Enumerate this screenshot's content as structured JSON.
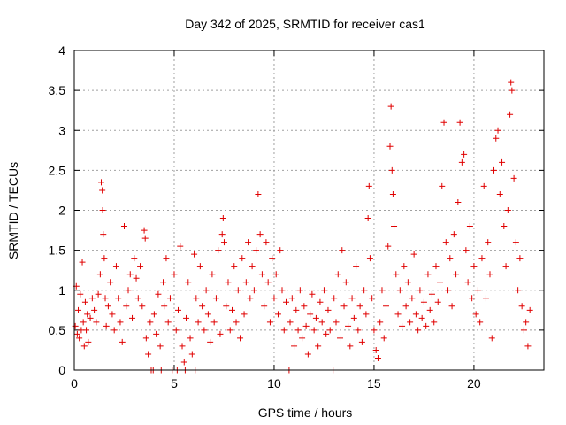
{
  "chart_data": {
    "type": "scatter",
    "title": "Day 342 of 2025, SRMTID for receiver cas1",
    "xlabel": "GPS time / hours",
    "ylabel": "SRMTID / TECUs",
    "xlim": [
      0,
      23.5
    ],
    "ylim": [
      0,
      4
    ],
    "x_ticks": [
      0,
      5,
      10,
      15,
      20
    ],
    "x_tick_labels": [
      "0",
      "5",
      "10",
      "15",
      "20"
    ],
    "y_ticks": [
      0,
      0.5,
      1,
      1.5,
      2,
      2.5,
      3,
      3.5,
      4
    ],
    "y_tick_labels": [
      "0",
      "0.5",
      "1",
      "1.5",
      "2",
      "2.5",
      "3",
      "3.5",
      "4"
    ],
    "grid": true,
    "marker": "plus",
    "series_color": "#e00000",
    "series": [
      {
        "name": "SRMTID",
        "points": [
          [
            0.05,
            0.55
          ],
          [
            0.1,
            1.05
          ],
          [
            0.15,
            0.45
          ],
          [
            0.2,
            0.75
          ],
          [
            0.25,
            0.4
          ],
          [
            0.3,
            0.95
          ],
          [
            0.35,
            0.5
          ],
          [
            0.4,
            1.35
          ],
          [
            0.45,
            0.6
          ],
          [
            0.5,
            0.3
          ],
          [
            0.55,
            0.85
          ],
          [
            0.6,
            0.5
          ],
          [
            0.65,
            0.7
          ],
          [
            0.7,
            0.35
          ],
          [
            0.8,
            0.65
          ],
          [
            0.9,
            0.9
          ],
          [
            1.0,
            0.75
          ],
          [
            1.1,
            0.6
          ],
          [
            1.2,
            0.95
          ],
          [
            1.3,
            1.2
          ],
          [
            1.35,
            2.35
          ],
          [
            1.4,
            2.25
          ],
          [
            1.42,
            2.0
          ],
          [
            1.45,
            1.7
          ],
          [
            1.5,
            1.4
          ],
          [
            1.55,
            0.9
          ],
          [
            1.6,
            0.55
          ],
          [
            1.7,
            0.8
          ],
          [
            1.8,
            1.1
          ],
          [
            1.9,
            0.7
          ],
          [
            2.0,
            0.5
          ],
          [
            2.1,
            1.3
          ],
          [
            2.2,
            0.9
          ],
          [
            2.3,
            0.6
          ],
          [
            2.4,
            0.35
          ],
          [
            2.5,
            1.8
          ],
          [
            2.6,
            0.8
          ],
          [
            2.7,
            1.0
          ],
          [
            2.8,
            1.2
          ],
          [
            2.9,
            0.65
          ],
          [
            3.0,
            1.4
          ],
          [
            3.1,
            1.15
          ],
          [
            3.2,
            0.9
          ],
          [
            3.3,
            1.3
          ],
          [
            3.4,
            0.8
          ],
          [
            3.5,
            1.75
          ],
          [
            3.55,
            1.65
          ],
          [
            3.6,
            0.4
          ],
          [
            3.7,
            0.2
          ],
          [
            3.8,
            0.6
          ],
          [
            3.85,
            0.0
          ],
          [
            3.95,
            0.0
          ],
          [
            4.0,
            0.7
          ],
          [
            4.1,
            0.45
          ],
          [
            4.2,
            0.95
          ],
          [
            4.3,
            0.3
          ],
          [
            4.35,
            0.0
          ],
          [
            4.45,
            1.1
          ],
          [
            4.5,
            0.8
          ],
          [
            4.6,
            1.4
          ],
          [
            4.7,
            0.6
          ],
          [
            4.8,
            0.9
          ],
          [
            4.9,
            0.0
          ],
          [
            5.0,
            1.2
          ],
          [
            5.1,
            0.5
          ],
          [
            5.15,
            0.0
          ],
          [
            5.2,
            0.75
          ],
          [
            5.3,
            1.55
          ],
          [
            5.4,
            0.3
          ],
          [
            5.5,
            0.1
          ],
          [
            5.55,
            0.0
          ],
          [
            5.6,
            0.65
          ],
          [
            5.7,
            1.1
          ],
          [
            5.8,
            0.4
          ],
          [
            5.9,
            0.2
          ],
          [
            6.0,
            1.45
          ],
          [
            6.05,
            0.0
          ],
          [
            6.1,
            0.9
          ],
          [
            6.2,
            0.6
          ],
          [
            6.3,
            1.3
          ],
          [
            6.4,
            0.8
          ],
          [
            6.5,
            0.5
          ],
          [
            6.6,
            1.0
          ],
          [
            6.7,
            0.7
          ],
          [
            6.8,
            0.35
          ],
          [
            6.9,
            1.2
          ],
          [
            7.0,
            0.6
          ],
          [
            7.1,
            0.9
          ],
          [
            7.2,
            1.5
          ],
          [
            7.3,
            0.45
          ],
          [
            7.4,
            1.7
          ],
          [
            7.45,
            1.9
          ],
          [
            7.5,
            1.6
          ],
          [
            7.6,
            0.8
          ],
          [
            7.7,
            1.1
          ],
          [
            7.8,
            0.5
          ],
          [
            7.9,
            0.75
          ],
          [
            8.0,
            1.3
          ],
          [
            8.1,
            0.6
          ],
          [
            8.2,
            1.0
          ],
          [
            8.3,
            0.4
          ],
          [
            8.4,
            1.4
          ],
          [
            8.5,
            0.7
          ],
          [
            8.6,
            1.1
          ],
          [
            8.7,
            1.6
          ],
          [
            8.8,
            0.9
          ],
          [
            8.9,
            1.3
          ],
          [
            9.0,
            1.0
          ],
          [
            9.1,
            1.5
          ],
          [
            9.2,
            2.2
          ],
          [
            9.3,
            1.7
          ],
          [
            9.4,
            1.2
          ],
          [
            9.5,
            0.8
          ],
          [
            9.6,
            1.6
          ],
          [
            9.7,
            1.1
          ],
          [
            9.8,
            0.6
          ],
          [
            9.9,
            1.4
          ],
          [
            10.0,
            0.9
          ],
          [
            10.1,
            1.2
          ],
          [
            10.2,
            0.7
          ],
          [
            10.3,
            1.5
          ],
          [
            10.4,
            1.0
          ],
          [
            10.5,
            0.5
          ],
          [
            10.6,
            0.85
          ],
          [
            10.75,
            0.0
          ],
          [
            10.8,
            0.6
          ],
          [
            10.9,
            0.9
          ],
          [
            11.0,
            0.3
          ],
          [
            11.1,
            0.75
          ],
          [
            11.2,
            0.5
          ],
          [
            11.3,
            1.0
          ],
          [
            11.4,
            0.4
          ],
          [
            11.5,
            0.8
          ],
          [
            11.6,
            0.55
          ],
          [
            11.7,
            0.2
          ],
          [
            11.8,
            0.7
          ],
          [
            11.9,
            0.95
          ],
          [
            12.0,
            0.5
          ],
          [
            12.1,
            0.65
          ],
          [
            12.2,
            0.3
          ],
          [
            12.3,
            0.85
          ],
          [
            12.4,
            0.6
          ],
          [
            12.5,
            1.0
          ],
          [
            12.6,
            0.45
          ],
          [
            12.7,
            0.75
          ],
          [
            12.8,
            0.5
          ],
          [
            12.95,
            0.0
          ],
          [
            13.0,
            0.9
          ],
          [
            13.1,
            0.6
          ],
          [
            13.2,
            1.2
          ],
          [
            13.3,
            0.4
          ],
          [
            13.4,
            1.5
          ],
          [
            13.5,
            0.8
          ],
          [
            13.6,
            1.1
          ],
          [
            13.7,
            0.55
          ],
          [
            13.8,
            0.3
          ],
          [
            13.9,
            0.9
          ],
          [
            14.0,
            0.65
          ],
          [
            14.1,
            1.3
          ],
          [
            14.2,
            0.5
          ],
          [
            14.3,
            0.8
          ],
          [
            14.4,
            0.35
          ],
          [
            14.5,
            1.0
          ],
          [
            14.6,
            0.7
          ],
          [
            14.7,
            1.9
          ],
          [
            14.75,
            2.3
          ],
          [
            14.8,
            1.4
          ],
          [
            14.9,
            0.9
          ],
          [
            15.0,
            0.5
          ],
          [
            15.1,
            0.25
          ],
          [
            15.2,
            0.15
          ],
          [
            15.3,
            0.6
          ],
          [
            15.4,
            1.0
          ],
          [
            15.5,
            0.4
          ],
          [
            15.6,
            0.8
          ],
          [
            15.7,
            1.55
          ],
          [
            15.8,
            2.8
          ],
          [
            15.85,
            3.3
          ],
          [
            15.9,
            2.5
          ],
          [
            15.95,
            2.2
          ],
          [
            16.0,
            1.8
          ],
          [
            16.1,
            1.2
          ],
          [
            16.2,
            0.7
          ],
          [
            16.3,
            1.0
          ],
          [
            16.4,
            0.55
          ],
          [
            16.5,
            1.3
          ],
          [
            16.6,
            0.8
          ],
          [
            16.7,
            1.1
          ],
          [
            16.8,
            0.6
          ],
          [
            16.9,
            0.9
          ],
          [
            17.0,
            1.45
          ],
          [
            17.1,
            0.7
          ],
          [
            17.2,
            0.5
          ],
          [
            17.3,
            1.0
          ],
          [
            17.4,
            0.65
          ],
          [
            17.5,
            0.85
          ],
          [
            17.6,
            0.55
          ],
          [
            17.7,
            1.2
          ],
          [
            17.8,
            0.75
          ],
          [
            17.9,
            0.95
          ],
          [
            18.0,
            0.6
          ],
          [
            18.1,
            1.3
          ],
          [
            18.2,
            0.85
          ],
          [
            18.3,
            1.1
          ],
          [
            18.4,
            2.3
          ],
          [
            18.5,
            3.1
          ],
          [
            18.6,
            1.6
          ],
          [
            18.7,
            1.0
          ],
          [
            18.8,
            1.4
          ],
          [
            18.9,
            0.8
          ],
          [
            19.0,
            1.7
          ],
          [
            19.1,
            1.2
          ],
          [
            19.2,
            2.1
          ],
          [
            19.3,
            3.1
          ],
          [
            19.4,
            2.6
          ],
          [
            19.5,
            2.7
          ],
          [
            19.6,
            1.5
          ],
          [
            19.7,
            1.1
          ],
          [
            19.8,
            1.8
          ],
          [
            19.9,
            0.9
          ],
          [
            20.0,
            1.3
          ],
          [
            20.1,
            0.7
          ],
          [
            20.2,
            1.0
          ],
          [
            20.3,
            0.6
          ],
          [
            20.4,
            1.4
          ],
          [
            20.5,
            2.3
          ],
          [
            20.6,
            0.9
          ],
          [
            20.7,
            1.6
          ],
          [
            20.8,
            1.2
          ],
          [
            20.9,
            0.4
          ],
          [
            21.0,
            2.5
          ],
          [
            21.1,
            2.9
          ],
          [
            21.2,
            3.0
          ],
          [
            21.3,
            2.2
          ],
          [
            21.4,
            2.6
          ],
          [
            21.5,
            1.8
          ],
          [
            21.6,
            1.3
          ],
          [
            21.7,
            2.0
          ],
          [
            21.8,
            3.2
          ],
          [
            21.85,
            3.6
          ],
          [
            21.9,
            3.5
          ],
          [
            22.0,
            2.4
          ],
          [
            22.1,
            1.6
          ],
          [
            22.2,
            1.0
          ],
          [
            22.3,
            1.4
          ],
          [
            22.4,
            0.8
          ],
          [
            22.5,
            0.5
          ],
          [
            22.6,
            0.6
          ],
          [
            22.7,
            0.3
          ],
          [
            22.8,
            0.75
          ]
        ]
      }
    ]
  }
}
